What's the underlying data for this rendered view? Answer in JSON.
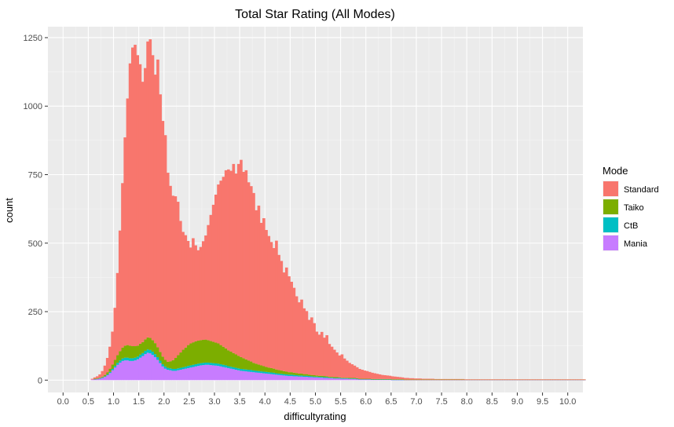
{
  "chart_data": {
    "type": "bar",
    "stacked": true,
    "histogram": true,
    "title": "Total Star Rating (All Modes)",
    "xlabel": "difficultyrating",
    "ylabel": "count",
    "xlim": [
      -0.3,
      10.3
    ],
    "ylim": [
      -45,
      1290
    ],
    "x_ticks": [
      "0.0",
      "0.5",
      "1.0",
      "1.5",
      "2.0",
      "2.5",
      "3.0",
      "3.5",
      "4.0",
      "4.5",
      "5.0",
      "5.5",
      "6.0",
      "6.5",
      "7.0",
      "7.5",
      "8.0",
      "8.5",
      "9.0",
      "9.5",
      "10.0"
    ],
    "y_ticks": [
      "0",
      "250",
      "500",
      "750",
      "1000",
      "1250"
    ],
    "grid": true,
    "legend": {
      "title": "Mode",
      "position": "right"
    },
    "bin_width": 0.05,
    "bin_start": 0.55,
    "series": [
      {
        "name": "Mania",
        "color": "#C77CFF",
        "values": [
          2,
          3,
          4,
          6,
          8,
          12,
          18,
          26,
          36,
          46,
          56,
          64,
          70,
          72,
          72,
          70,
          70,
          72,
          76,
          82,
          88,
          95,
          100,
          98,
          92,
          84,
          74,
          62,
          50,
          42,
          38,
          36,
          34,
          34,
          36,
          38,
          40,
          42,
          44,
          46,
          48,
          50,
          52,
          54,
          55,
          56,
          56,
          55,
          54,
          53,
          52,
          50,
          48,
          46,
          44,
          42,
          40,
          38,
          36,
          34,
          33,
          32,
          31,
          30,
          29,
          28,
          27,
          26,
          25,
          24,
          23,
          22,
          21,
          20,
          19,
          18,
          17,
          16,
          15,
          15,
          14,
          14,
          13,
          13,
          12,
          12,
          11,
          11,
          10,
          10,
          9,
          9,
          8,
          8,
          7,
          7,
          6,
          6,
          6,
          5,
          5,
          5,
          4,
          4,
          4,
          4,
          3,
          3,
          3,
          3,
          3,
          2,
          2,
          2,
          2,
          2,
          2,
          2,
          2,
          1,
          1,
          1,
          1,
          1,
          1,
          1,
          1,
          1,
          1,
          1,
          1,
          1,
          1,
          1,
          1,
          1,
          1,
          1,
          1,
          1,
          1,
          1,
          1,
          1,
          1,
          1,
          1,
          1,
          1,
          1,
          1,
          1,
          1,
          1,
          1,
          1,
          1,
          1,
          1,
          1,
          1,
          1,
          1,
          1,
          1,
          1,
          1,
          1,
          1,
          1,
          1,
          1,
          1,
          1,
          1,
          1,
          1,
          1,
          1,
          1,
          1,
          1,
          1,
          1,
          1,
          1,
          1,
          1,
          1,
          1,
          1,
          1,
          1,
          1,
          1,
          1
        ]
      },
      {
        "name": "CtB",
        "color": "#00BFC4",
        "values": [
          0,
          1,
          1,
          1,
          2,
          2,
          3,
          4,
          5,
          6,
          7,
          8,
          9,
          10,
          10,
          10,
          10,
          10,
          10,
          11,
          11,
          12,
          12,
          12,
          12,
          11,
          10,
          9,
          8,
          8,
          7,
          7,
          7,
          7,
          7,
          7,
          7,
          7,
          8,
          8,
          8,
          8,
          8,
          8,
          8,
          8,
          8,
          8,
          8,
          8,
          8,
          8,
          8,
          8,
          7,
          7,
          7,
          7,
          7,
          7,
          7,
          7,
          7,
          7,
          6,
          6,
          6,
          6,
          6,
          6,
          6,
          6,
          6,
          5,
          5,
          5,
          5,
          5,
          5,
          5,
          5,
          4,
          4,
          4,
          4,
          4,
          4,
          3,
          3,
          3,
          3,
          3,
          3,
          3,
          2,
          2,
          2,
          2,
          2,
          2,
          2,
          2,
          2,
          2,
          2,
          1,
          1,
          1,
          1,
          1,
          1,
          1,
          1,
          1,
          1,
          1,
          1,
          1,
          1,
          1,
          1,
          1,
          1,
          1,
          0,
          0,
          0,
          0,
          0,
          0,
          0,
          0,
          0,
          0,
          0,
          0,
          0,
          0,
          0,
          0,
          0,
          0,
          0,
          0,
          0,
          0,
          0,
          0,
          0,
          0,
          0,
          0,
          0,
          0,
          0,
          0,
          0,
          0,
          0,
          0,
          0,
          0,
          0,
          0,
          0,
          0,
          0,
          0,
          0,
          0,
          0,
          0,
          0,
          0,
          0,
          0,
          0,
          0,
          0,
          0,
          0,
          0,
          0,
          0,
          0,
          0,
          0,
          0,
          0,
          0,
          0,
          0,
          0,
          0,
          0,
          0
        ]
      },
      {
        "name": "Taiko",
        "color": "#7CAE00",
        "values": [
          0,
          1,
          1,
          2,
          3,
          5,
          8,
          12,
          16,
          22,
          28,
          34,
          40,
          44,
          46,
          46,
          44,
          42,
          40,
          40,
          40,
          42,
          44,
          44,
          42,
          40,
          36,
          32,
          28,
          24,
          22,
          26,
          32,
          40,
          48,
          56,
          64,
          70,
          76,
          80,
          82,
          84,
          84,
          84,
          84,
          84,
          82,
          80,
          78,
          76,
          74,
          70,
          66,
          62,
          58,
          55,
          52,
          49,
          46,
          43,
          40,
          37,
          34,
          31,
          28,
          26,
          24,
          22,
          20,
          18,
          17,
          16,
          15,
          14,
          13,
          12,
          11,
          10,
          9,
          9,
          8,
          8,
          7,
          7,
          6,
          6,
          5,
          5,
          5,
          4,
          4,
          4,
          4,
          3,
          3,
          3,
          3,
          3,
          2,
          2,
          2,
          2,
          2,
          2,
          2,
          2,
          1,
          1,
          1,
          1,
          1,
          1,
          1,
          1,
          1,
          1,
          1,
          1,
          1,
          1,
          1,
          1,
          1,
          1,
          1,
          1,
          1,
          1,
          1,
          1,
          1,
          1,
          1,
          1,
          1,
          1,
          1,
          1,
          1,
          1,
          1,
          1,
          1,
          1,
          1,
          1,
          1,
          1,
          1,
          1,
          1,
          1,
          1,
          1,
          1,
          1,
          1,
          1,
          1,
          1,
          1,
          1,
          1,
          1,
          1,
          1,
          1,
          1,
          1,
          1,
          1,
          1,
          1,
          1,
          1,
          1,
          1,
          1,
          1,
          1,
          1,
          1,
          1,
          1,
          1,
          1,
          1,
          1,
          1,
          1,
          1,
          1,
          1,
          1,
          1,
          1,
          1,
          1,
          1,
          1,
          1
        ]
      },
      {
        "name": "Standard",
        "color": "#F8766D",
        "values": [
          3,
          5,
          8,
          12,
          20,
          34,
          52,
          80,
          120,
          190,
          300,
          440,
          600,
          760,
          900,
          1030,
          1090,
          1100,
          1060,
          1020,
          950,
          990,
          1080,
          1090,
          1040,
          980,
          1050,
          940,
          860,
          820,
          690,
          640,
          600,
          590,
          560,
          480,
          430,
          410,
          380,
          350,
          380,
          350,
          330,
          340,
          360,
          380,
          420,
          460,
          500,
          540,
          580,
          600,
          620,
          650,
          660,
          660,
          690,
          660,
          700,
          720,
          680,
          690,
          650,
          640,
          620,
          560,
          580,
          520,
          540,
          500,
          480,
          460,
          440,
          470,
          420,
          400,
          360,
          380,
          350,
          330,
          310,
          280,
          260,
          270,
          240,
          230,
          200,
          210,
          190,
          160,
          150,
          160,
          140,
          150,
          120,
          110,
          100,
          90,
          80,
          85,
          70,
          62,
          55,
          50,
          45,
          40,
          36,
          33,
          30,
          28,
          25,
          23,
          21,
          19,
          17,
          15,
          14,
          13,
          12,
          11,
          10,
          9,
          8,
          7,
          6,
          6,
          5,
          5,
          4,
          4,
          4,
          3,
          3,
          3,
          3,
          3,
          2,
          2,
          2,
          2,
          2,
          2,
          2,
          2,
          2,
          2,
          2,
          2,
          1,
          1,
          1,
          1,
          1,
          1,
          1,
          1,
          1,
          1,
          1,
          1,
          1,
          1,
          1,
          1,
          1,
          1,
          1,
          1,
          1,
          1,
          1,
          1,
          1,
          1,
          1,
          1,
          1,
          1,
          1,
          1,
          1,
          1,
          1,
          1,
          1,
          1,
          1,
          1,
          1,
          1,
          1,
          1,
          1,
          1,
          1,
          1,
          1,
          1,
          1,
          1,
          1,
          1,
          1,
          1,
          1,
          1,
          1,
          1,
          1,
          1
        ]
      }
    ]
  }
}
